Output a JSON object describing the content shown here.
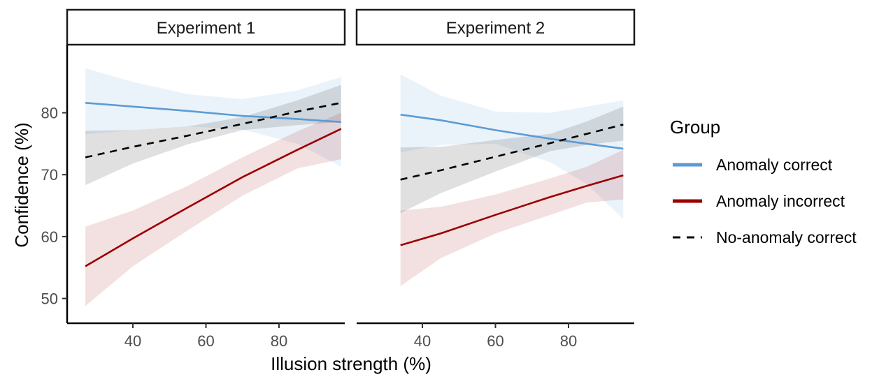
{
  "chart_data": {
    "type": "line",
    "xlabel": "Illusion strength (%)",
    "ylabel": "Confidence (%)",
    "xlim": [
      22,
      98
    ],
    "ylim": [
      46,
      91
    ],
    "xticks": [
      40,
      60,
      80
    ],
    "yticks": [
      50,
      60,
      70,
      80
    ],
    "grid": false,
    "legend": {
      "title": "Group",
      "position": "right",
      "entries": [
        {
          "label": "Anomaly correct",
          "color": "#5b9bd5",
          "dash": "solid"
        },
        {
          "label": "Anomaly incorrect",
          "color": "#9b0000",
          "dash": "solid"
        },
        {
          "label": "No-anomaly correct",
          "color": "#000000",
          "dash": "dashed"
        }
      ]
    },
    "panels": [
      {
        "title": "Experiment 1",
        "series": [
          {
            "name": "Anomaly correct",
            "x": [
              27,
              40,
              55,
              70,
              85,
              97
            ],
            "y": [
              81.6,
              81.0,
              80.3,
              79.5,
              79.0,
              78.5
            ],
            "lower": [
              76.5,
              77.2,
              77.8,
              77.3,
              75.0,
              71.3
            ],
            "upper": [
              87.2,
              85.0,
              83.0,
              82.2,
              83.6,
              85.8
            ]
          },
          {
            "name": "Anomaly incorrect",
            "x": [
              27,
              40,
              55,
              70,
              85,
              97
            ],
            "y": [
              55.2,
              59.7,
              64.7,
              69.6,
              74.0,
              77.4
            ],
            "lower": [
              48.8,
              55.2,
              61.0,
              66.6,
              71.0,
              72.5
            ],
            "upper": [
              61.6,
              64.2,
              68.2,
              72.8,
              77.0,
              80.0
            ]
          },
          {
            "name": "No-anomaly correct",
            "x": [
              27,
              40,
              55,
              70,
              85,
              97
            ],
            "y": [
              72.8,
              74.5,
              76.3,
              78.2,
              80.2,
              81.6
            ],
            "lower": [
              68.3,
              71.8,
              74.9,
              77.2,
              78.0,
              78.5
            ],
            "upper": [
              77.1,
              77.2,
              77.8,
              79.3,
              82.0,
              84.5
            ]
          }
        ]
      },
      {
        "title": "Experiment 2",
        "series": [
          {
            "name": "Anomaly correct",
            "x": [
              34,
              45,
              60,
              75,
              85,
              95
            ],
            "y": [
              79.7,
              78.8,
              77.2,
              75.8,
              75.0,
              74.2
            ],
            "lower": [
              73.6,
              74.8,
              75.0,
              72.0,
              68.5,
              62.8
            ],
            "upper": [
              86.2,
              82.8,
              80.2,
              80.0,
              81.0,
              82.0
            ]
          },
          {
            "name": "Anomaly incorrect",
            "x": [
              34,
              45,
              60,
              75,
              85,
              95
            ],
            "y": [
              58.6,
              60.5,
              63.5,
              66.4,
              68.2,
              69.9
            ],
            "lower": [
              52.0,
              56.5,
              60.5,
              63.5,
              65.5,
              66.0
            ],
            "upper": [
              64.2,
              64.8,
              66.8,
              69.4,
              71.3,
              74.0
            ]
          },
          {
            "name": "No-anomaly correct",
            "x": [
              34,
              45,
              60,
              75,
              85,
              95
            ],
            "y": [
              69.2,
              70.7,
              72.9,
              75.1,
              76.6,
              78.1
            ],
            "lower": [
              63.8,
              67.0,
              70.5,
              73.8,
              74.8,
              75.5
            ],
            "upper": [
              74.4,
              74.5,
              75.6,
              76.6,
              78.6,
              81.0
            ]
          }
        ]
      }
    ]
  }
}
